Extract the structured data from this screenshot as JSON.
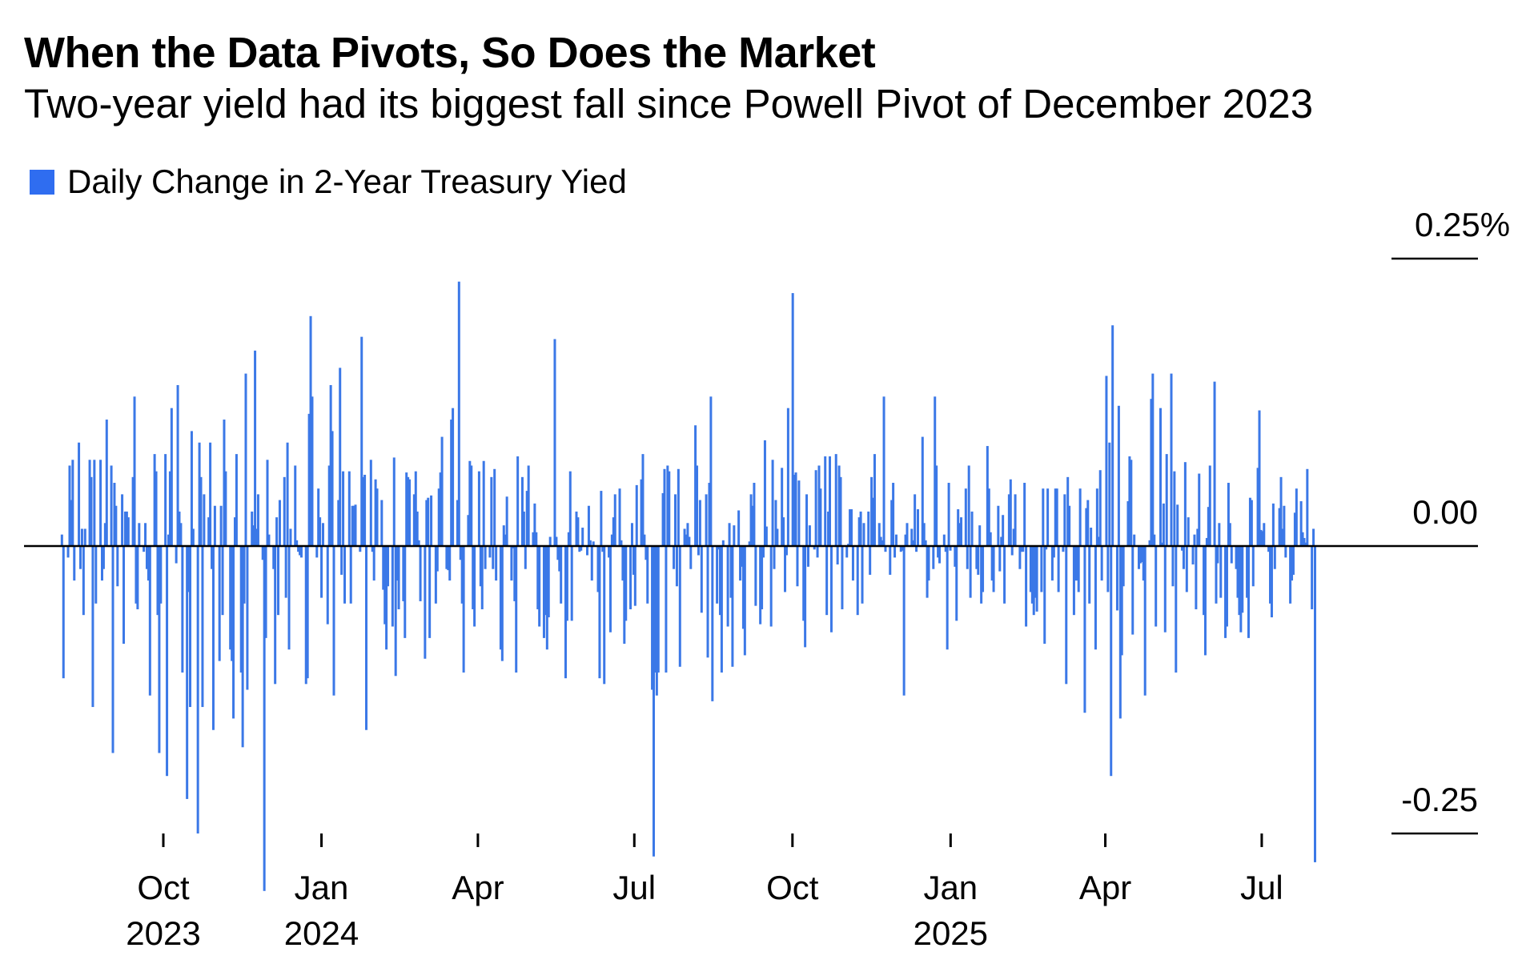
{
  "header": {
    "title": "When the Data Pivots, So Does the Market",
    "subtitle": "Two-year yield had its biggest fall since Powell Pivot of December 2023"
  },
  "legend": {
    "label": "Daily Change in 2-Year Treasury Yied",
    "color": "#2f6df0"
  },
  "chart_data": {
    "type": "bar",
    "title": "When the Data Pivots, So Does the Market",
    "subtitle": "Two-year yield had its biggest fall since Powell Pivot of December 2023",
    "xlabel": "",
    "ylabel": "",
    "series": [
      {
        "name": "Daily Change in 2-Year Treasury Yied",
        "color": "#3b78e7",
        "start_date": "2023-08-03",
        "frequency": "business-day",
        "end_date": "2025-08-01",
        "values": [
          0.01,
          -0.115,
          -0.01,
          0.07,
          0.04,
          0.075,
          -0.03,
          0.09,
          -0.02,
          0.015,
          -0.06,
          0.015,
          0.075,
          0.06,
          -0.14,
          0.075,
          -0.05,
          0.075,
          -0.03,
          -0.02,
          0.02,
          0.11,
          0.07,
          -0.18,
          0.055,
          0.035,
          -0.035,
          0.045,
          -0.085,
          0.03,
          0.03,
          0.025,
          0.06,
          0.13,
          -0.05,
          -0.055,
          0.02,
          -0.005,
          0.02,
          -0.02,
          -0.03,
          -0.13,
          0.08,
          0.065,
          -0.06,
          -0.18,
          -0.05,
          0.08,
          -0.2,
          0.01,
          0.065,
          0.12,
          -0.015,
          0.14,
          0.03,
          0.02,
          -0.11,
          -0.22,
          -0.04,
          -0.14,
          0.1,
          0.015,
          -0.25,
          0.09,
          0.06,
          -0.14,
          0.045,
          0.025,
          0.09,
          -0.02,
          -0.16,
          0.035,
          -0.1,
          0.035,
          -0.06,
          0.11,
          0.065,
          -0.09,
          -0.1,
          -0.15,
          0.025,
          0.08,
          -0.11,
          -0.175,
          -0.05,
          0.15,
          -0.125,
          0.03,
          0.018,
          0.17,
          0.015,
          0.045,
          -0.012,
          -0.3,
          -0.08,
          0.075,
          0.01,
          -0.02,
          -0.12,
          0.025,
          -0.06,
          0.04,
          0.06,
          -0.045,
          0.09,
          -0.09,
          0.015,
          0.07,
          0.005,
          -0.005,
          -0.008,
          -0.01,
          -0.12,
          -0.115,
          0.115,
          0.2,
          0.13,
          -0.01,
          0.05,
          0.025,
          -0.045,
          0.02,
          -0.068,
          0.07,
          0.14,
          0.1,
          -0.13,
          0.04,
          0.155,
          -0.025,
          0.065,
          -0.05,
          0.065,
          -0.05,
          0.035,
          0.035,
          0.036,
          -0.005,
          0.182,
          0.06,
          0.062,
          -0.16,
          0.075,
          -0.005,
          -0.03,
          0.058,
          0.05,
          0.04,
          -0.038,
          -0.068,
          -0.09,
          -0.035,
          -0.07,
          0.077,
          -0.113,
          -0.03,
          -0.055,
          -0.048,
          -0.08,
          0.064,
          0.06,
          0.058,
          0.045,
          0.065,
          0.03,
          0.005,
          -0.048,
          -0.098,
          0.04,
          0.042,
          -0.08,
          0.044,
          -0.05,
          -0.022,
          0.05,
          0.064,
          0.095,
          -0.02,
          -0.021,
          -0.03,
          0.11,
          0.12,
          0.04,
          0.23,
          -0.012,
          -0.05,
          -0.11,
          0.027,
          0.074,
          0.07,
          -0.055,
          -0.07,
          0.065,
          -0.035,
          -0.055,
          0.074,
          -0.02,
          -0.01,
          0.06,
          -0.02,
          0.067,
          -0.03,
          -0.09,
          -0.1,
          0.018,
          0.01,
          0.043,
          -0.03,
          -0.002,
          -0.048,
          -0.11,
          0.078,
          0.06,
          0.03,
          -0.02,
          0.048,
          0.07,
          0.012,
          0.037,
          0.012,
          -0.055,
          -0.07,
          -0.08,
          -0.06,
          -0.09,
          -0.062,
          0.008,
          0.18,
          0.008,
          -0.012,
          -0.022,
          -0.05,
          -0.115,
          -0.065,
          0.012,
          0.065,
          -0.065,
          0.03,
          0.025,
          -0.005,
          -0.004,
          0.016,
          -0.008,
          0.035,
          0.005,
          -0.03,
          0.004,
          -0.04,
          -0.115,
          0.048,
          -0.005,
          -0.12,
          -0.01,
          -0.075,
          0.01,
          0.025,
          0.045,
          0.05,
          0.005,
          -0.03,
          -0.085,
          -0.065,
          -0.055,
          0.02,
          -0.025,
          -0.052,
          0.053,
          0.058,
          0.08,
          0.01,
          -0.012,
          -0.05,
          -0.125,
          -0.27,
          -0.11,
          -0.13,
          -0.11,
          0.046,
          0.067,
          -0.11,
          0.07,
          0.065,
          -0.02,
          0.045,
          -0.035,
          0.067,
          -0.105,
          0.015,
          0.01,
          0.02,
          0.008,
          -0.02,
          0.105,
          0.07,
          -0.008,
          0.04,
          -0.058,
          0.045,
          -0.097,
          0.055,
          0.13,
          -0.135,
          -0.05,
          -0.003,
          -0.06,
          -0.11,
          0.005,
          -0.07,
          0.02,
          -0.045,
          -0.105,
          0.018,
          0.031,
          -0.03,
          -0.018,
          -0.072,
          -0.095,
          0.004,
          0.045,
          0.035,
          0.055,
          -0.052,
          -0.068,
          -0.055,
          -0.01,
          0.092,
          0.017,
          -0.07,
          0.075,
          -0.02,
          0.04,
          0.015,
          0.068,
          0.025,
          -0.04,
          -0.008,
          0.12,
          0.22,
          0.062,
          0.064,
          -0.035,
          0.057,
          -0.065,
          -0.088,
          0.045,
          -0.018,
          0.018,
          -0.003,
          0.066,
          -0.01,
          0.07,
          0.05,
          0.078,
          -0.06,
          0.03,
          0.078,
          -0.075,
          0.08,
          -0.016,
          0.07,
          0.06,
          -0.055,
          -0.01,
          0.002,
          0.032,
          0.032,
          -0.03,
          -0.06,
          0.025,
          0.03,
          -0.05,
          0.02,
          0.03,
          -0.025,
          0.06,
          0.042,
          0.08,
          0.02,
          0.008,
          0.005,
          0.13,
          -0.005,
          -0.025,
          0.04,
          0.055,
          -0.01,
          0.01,
          -0.005,
          -0.004,
          -0.13,
          0.01,
          0.02,
          0.015,
          0.005,
          0.045,
          -0.005,
          0.032,
          0.095,
          0.02,
          0.005,
          -0.045,
          -0.03,
          -0.02,
          0.13,
          0.07,
          -0.01,
          -0.015,
          0.01,
          -0.005,
          -0.09,
          0.055,
          -0.004,
          -0.018,
          -0.065,
          0.032,
          0.02,
          0.025,
          0.05,
          -0.02,
          0.07,
          -0.045,
          0.03,
          -0.02,
          -0.025,
          0.018,
          -0.05,
          -0.04,
          0.087,
          0.05,
          0.012,
          -0.03,
          -0.04,
          0.035,
          -0.022,
          0.008,
          0.027,
          -0.05,
          0.045,
          0.058,
          -0.008,
          0.015,
          0.045,
          -0.02,
          -0.005,
          -0.005,
          0.055,
          -0.07,
          -0.04,
          -0.05,
          -0.06,
          -0.045,
          -0.057,
          -0.04,
          0.05,
          -0.085,
          -0.003,
          0.05,
          -0.03,
          -0.01,
          0.05,
          0.05,
          -0.04,
          -0.005,
          0.045,
          -0.12,
          0.06,
          0.035,
          -0.06,
          -0.03,
          -0.03,
          -0.04,
          0.05,
          -0.145,
          0.033,
          0.04,
          -0.05,
          0.016,
          -0.09,
          0.05,
          0.008,
          0.066,
          -0.03,
          0.148,
          -0.04,
          0.09,
          -0.2,
          0.192,
          -0.056,
          0.122,
          -0.15,
          -0.095,
          -0.035,
          0.039,
          0.078,
          0.075,
          -0.077,
          0.01,
          -0.02,
          -0.015,
          -0.014,
          -0.03,
          -0.13,
          0.005,
          0.128,
          0.15,
          0.01,
          -0.07,
          0.12,
          0.003,
          0.037,
          -0.075,
          0.08,
          0.15,
          -0.035,
          0.065,
          -0.11,
          0.036,
          -0.004,
          -0.02,
          0.073,
          -0.04,
          0.025,
          -0.016,
          0.01,
          -0.055,
          0.015,
          0.063,
          -0.06,
          -0.095,
          0.007,
          0.034,
          0.07,
          0.143,
          -0.05,
          -0.015,
          0.02,
          -0.045,
          -0.08,
          -0.07,
          0.055,
          0.02,
          -0.015,
          -0.02,
          -0.045,
          -0.06,
          -0.075,
          -0.058,
          -0.045,
          -0.08,
          0.042,
          0.04,
          -0.035,
          0.068,
          0.118,
          0.014,
          0.013,
          0.02,
          -0.005,
          -0.05,
          -0.062,
          0.037,
          -0.02,
          0.033,
          0.06,
          0.015,
          0.035,
          -0.01,
          -0.05,
          -0.03,
          -0.025,
          0.029,
          0.05,
          0.039,
          0.012,
          0.007,
          0.003,
          0.067,
          -0.055,
          0.015,
          -0.275
        ]
      }
    ],
    "x_ticks": [
      {
        "month": "Oct",
        "year": "2023",
        "date": "2023-10-01"
      },
      {
        "month": "Jan",
        "year": "2024",
        "date": "2024-01-01"
      },
      {
        "month": "Apr",
        "year": "",
        "date": "2024-04-01"
      },
      {
        "month": "Jul",
        "year": "",
        "date": "2024-07-01"
      },
      {
        "month": "Oct",
        "year": "",
        "date": "2024-10-01"
      },
      {
        "month": "Jan",
        "year": "2025",
        "date": "2025-01-01"
      },
      {
        "month": "Apr",
        "year": "",
        "date": "2025-04-01"
      },
      {
        "month": "Jul",
        "year": "",
        "date": "2025-07-01"
      }
    ],
    "y_ticks": [
      {
        "value": 0.25,
        "label": "0.25%"
      },
      {
        "value": 0.0,
        "label": "0.00"
      },
      {
        "value": -0.25,
        "label": "-0.25"
      }
    ],
    "xlim": [
      "2023-08-01",
      "2025-10-01"
    ],
    "ylim": [
      -0.3,
      0.25
    ],
    "y_unit": "%",
    "grid": false,
    "legend_position": "top-left",
    "y_axis_position": "right"
  }
}
